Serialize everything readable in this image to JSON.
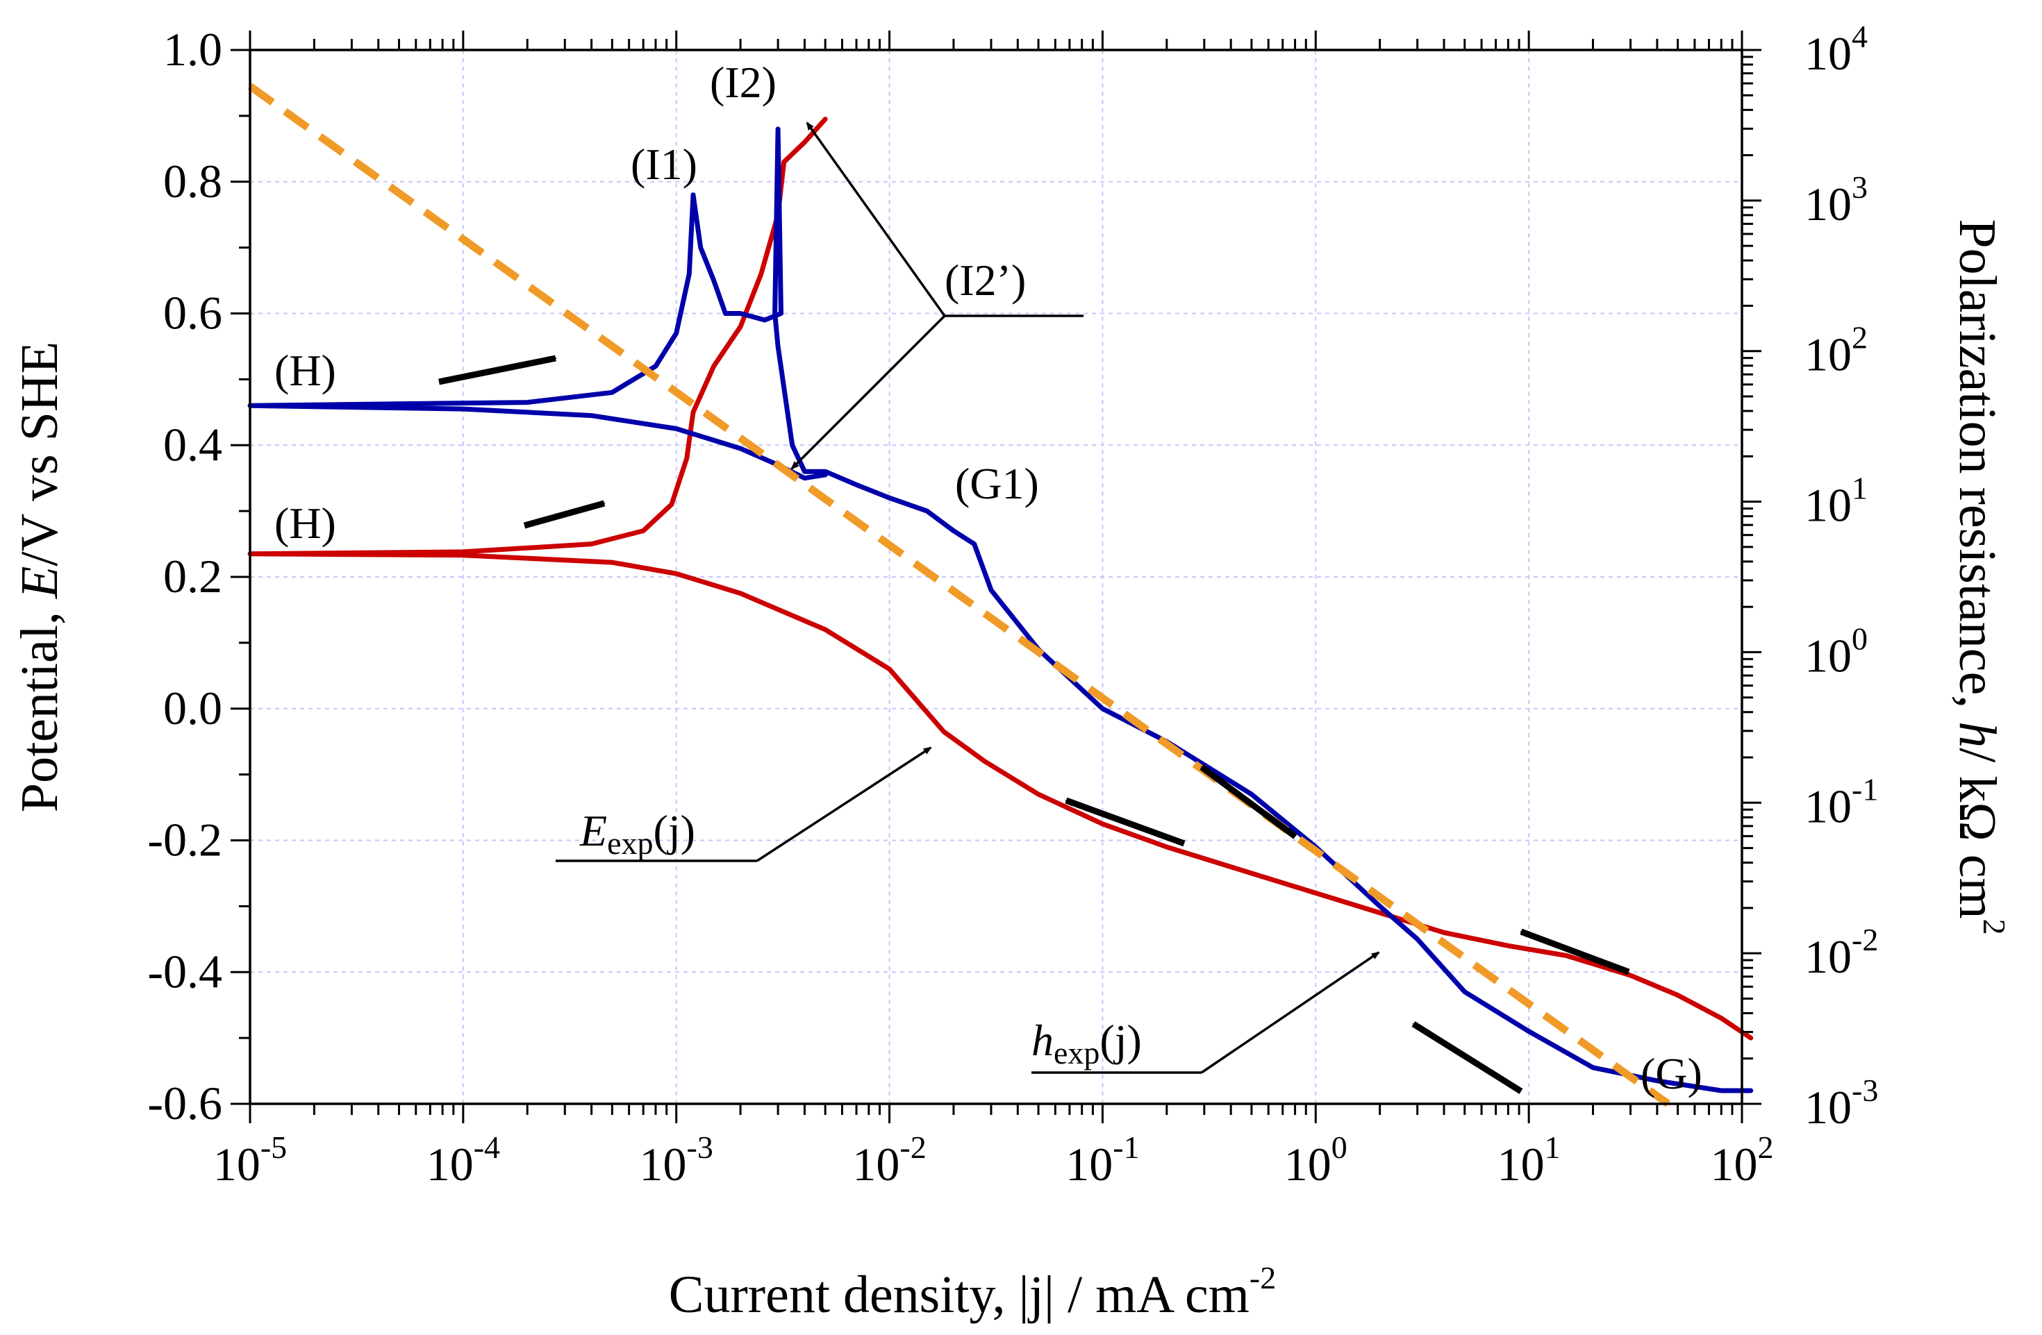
{
  "chart_data": {
    "type": "line",
    "xlabel": "Current density, |j| / mA cm",
    "xlabel_sup": "-2",
    "ylabel_left_prefix": "Potential, ",
    "ylabel_left_italic": "E",
    "ylabel_left_suffix": "/V vs SHE",
    "ylabel_right_prefix": "Polarization resistance, ",
    "ylabel_right_italic": "h",
    "ylabel_right_suffix": "/ kΩ cm",
    "ylabel_right_sup": "2",
    "x_scale": "log",
    "xlim": [
      1e-05,
      100
    ],
    "ylim_left": [
      -0.6,
      1.0
    ],
    "ylim_right": [
      0.001,
      10000
    ],
    "grid": true,
    "x_ticks": [
      {
        "base": "10",
        "exp": "-5",
        "value": 1e-05
      },
      {
        "base": "10",
        "exp": "-4",
        "value": 0.0001
      },
      {
        "base": "10",
        "exp": "-3",
        "value": 0.001
      },
      {
        "base": "10",
        "exp": "-2",
        "value": 0.01
      },
      {
        "base": "10",
        "exp": "-1",
        "value": 0.1
      },
      {
        "base": "10",
        "exp": "0",
        "value": 1
      },
      {
        "base": "10",
        "exp": "1",
        "value": 10
      },
      {
        "base": "10",
        "exp": "2",
        "value": 100
      }
    ],
    "y_left_ticks": [
      {
        "label": "1.0",
        "value": 1.0
      },
      {
        "label": "0.8",
        "value": 0.8
      },
      {
        "label": "0.6",
        "value": 0.6
      },
      {
        "label": "0.4",
        "value": 0.4
      },
      {
        "label": "0.2",
        "value": 0.2
      },
      {
        "label": "0.0",
        "value": 0.0
      },
      {
        "label": "-0.2",
        "value": -0.2
      },
      {
        "label": "-0.4",
        "value": -0.4
      },
      {
        "label": "-0.6",
        "value": -0.6
      }
    ],
    "y_right_ticks": [
      {
        "base": "10",
        "exp": "4",
        "value": 10000
      },
      {
        "base": "10",
        "exp": "3",
        "value": 1000
      },
      {
        "base": "10",
        "exp": "2",
        "value": 100
      },
      {
        "base": "10",
        "exp": "1",
        "value": 10
      },
      {
        "base": "10",
        "exp": "0",
        "value": 1
      },
      {
        "base": "10",
        "exp": "-1",
        "value": 0.1
      },
      {
        "base": "10",
        "exp": "-2",
        "value": 0.01
      },
      {
        "base": "10",
        "exp": "-3",
        "value": 0.001
      }
    ],
    "series": [
      {
        "name": "E_exp(j)",
        "axis": "left",
        "color": "#cc0000",
        "points": [
          [
            110,
            -0.5
          ],
          [
            80,
            -0.47
          ],
          [
            50,
            -0.435
          ],
          [
            30,
            -0.405
          ],
          [
            15,
            -0.375
          ],
          [
            8,
            -0.36
          ],
          [
            4,
            -0.34
          ],
          [
            2,
            -0.31
          ],
          [
            1,
            -0.28
          ],
          [
            0.5,
            -0.25
          ],
          [
            0.2,
            -0.21
          ],
          [
            0.1,
            -0.175
          ],
          [
            0.05,
            -0.13
          ],
          [
            0.028,
            -0.08
          ],
          [
            0.018,
            -0.035
          ],
          [
            0.01,
            0.06
          ],
          [
            0.005,
            0.12
          ],
          [
            0.002,
            0.175
          ],
          [
            0.001,
            0.205
          ],
          [
            0.0005,
            0.222
          ],
          [
            0.0001,
            0.233
          ],
          [
            1e-05,
            0.235
          ],
          [
            0.0001,
            0.238
          ],
          [
            0.0004,
            0.25
          ],
          [
            0.0007,
            0.27
          ],
          [
            0.00095,
            0.31
          ],
          [
            0.00112,
            0.38
          ],
          [
            0.0012,
            0.45
          ],
          [
            0.0015,
            0.52
          ],
          [
            0.002,
            0.58
          ],
          [
            0.0025,
            0.66
          ],
          [
            0.003,
            0.75
          ],
          [
            0.0032,
            0.83
          ],
          [
            0.004,
            0.86
          ],
          [
            0.005,
            0.895
          ]
        ]
      },
      {
        "name": "h_exp(j)",
        "axis": "left",
        "color": "#0000aa",
        "points": [
          [
            110,
            -0.58
          ],
          [
            80,
            -0.58
          ],
          [
            40,
            -0.565
          ],
          [
            20,
            -0.545
          ],
          [
            10,
            -0.49
          ],
          [
            5,
            -0.43
          ],
          [
            3,
            -0.35
          ],
          [
            2,
            -0.3
          ],
          [
            1,
            -0.21
          ],
          [
            0.5,
            -0.13
          ],
          [
            0.2,
            -0.05
          ],
          [
            0.1,
            0.0
          ],
          [
            0.05,
            0.09
          ],
          [
            0.03,
            0.18
          ],
          [
            0.025,
            0.25
          ],
          [
            0.02,
            0.27
          ],
          [
            0.015,
            0.3
          ],
          [
            0.01,
            0.32
          ],
          [
            0.007,
            0.34
          ],
          [
            0.005,
            0.36
          ],
          [
            0.004,
            0.36
          ],
          [
            0.0035,
            0.4
          ],
          [
            0.003,
            0.55
          ],
          [
            0.0029,
            0.6
          ],
          [
            0.003,
            0.88
          ],
          [
            0.0031,
            0.6
          ],
          [
            0.0026,
            0.59
          ],
          [
            0.002,
            0.6
          ],
          [
            0.0017,
            0.6
          ],
          [
            0.0015,
            0.65
          ],
          [
            0.0013,
            0.7
          ],
          [
            0.0012,
            0.78
          ],
          [
            0.00115,
            0.66
          ],
          [
            0.001,
            0.57
          ],
          [
            0.0008,
            0.52
          ],
          [
            0.0005,
            0.48
          ],
          [
            0.0002,
            0.465
          ],
          [
            1e-05,
            0.46
          ],
          [
            0.0001,
            0.455
          ],
          [
            0.0004,
            0.445
          ],
          [
            0.001,
            0.425
          ],
          [
            0.002,
            0.395
          ],
          [
            0.003,
            0.37
          ],
          [
            0.004,
            0.35
          ],
          [
            0.005,
            0.355
          ]
        ]
      },
      {
        "name": "Tafel fit",
        "axis": "left",
        "color": "#f09a27",
        "style": "dashed",
        "points": [
          [
            1e-05,
            0.945
          ],
          [
            45,
            -0.6
          ]
        ]
      }
    ],
    "annotations": [
      {
        "id": "H-upper",
        "text": "(H)"
      },
      {
        "id": "H-lower",
        "text": "(H)"
      },
      {
        "id": "I1",
        "text": "(I1)"
      },
      {
        "id": "I2",
        "text": "(I2)"
      },
      {
        "id": "I2p",
        "text": "(I2’)"
      },
      {
        "id": "G1",
        "text": "(G1)"
      },
      {
        "id": "G",
        "text": "(G)"
      },
      {
        "id": "Eexp",
        "main": "E",
        "sub": "exp",
        "tail": "(j)"
      },
      {
        "id": "hexp",
        "main": "h",
        "sub": "exp",
        "tail": "(j)"
      }
    ]
  }
}
